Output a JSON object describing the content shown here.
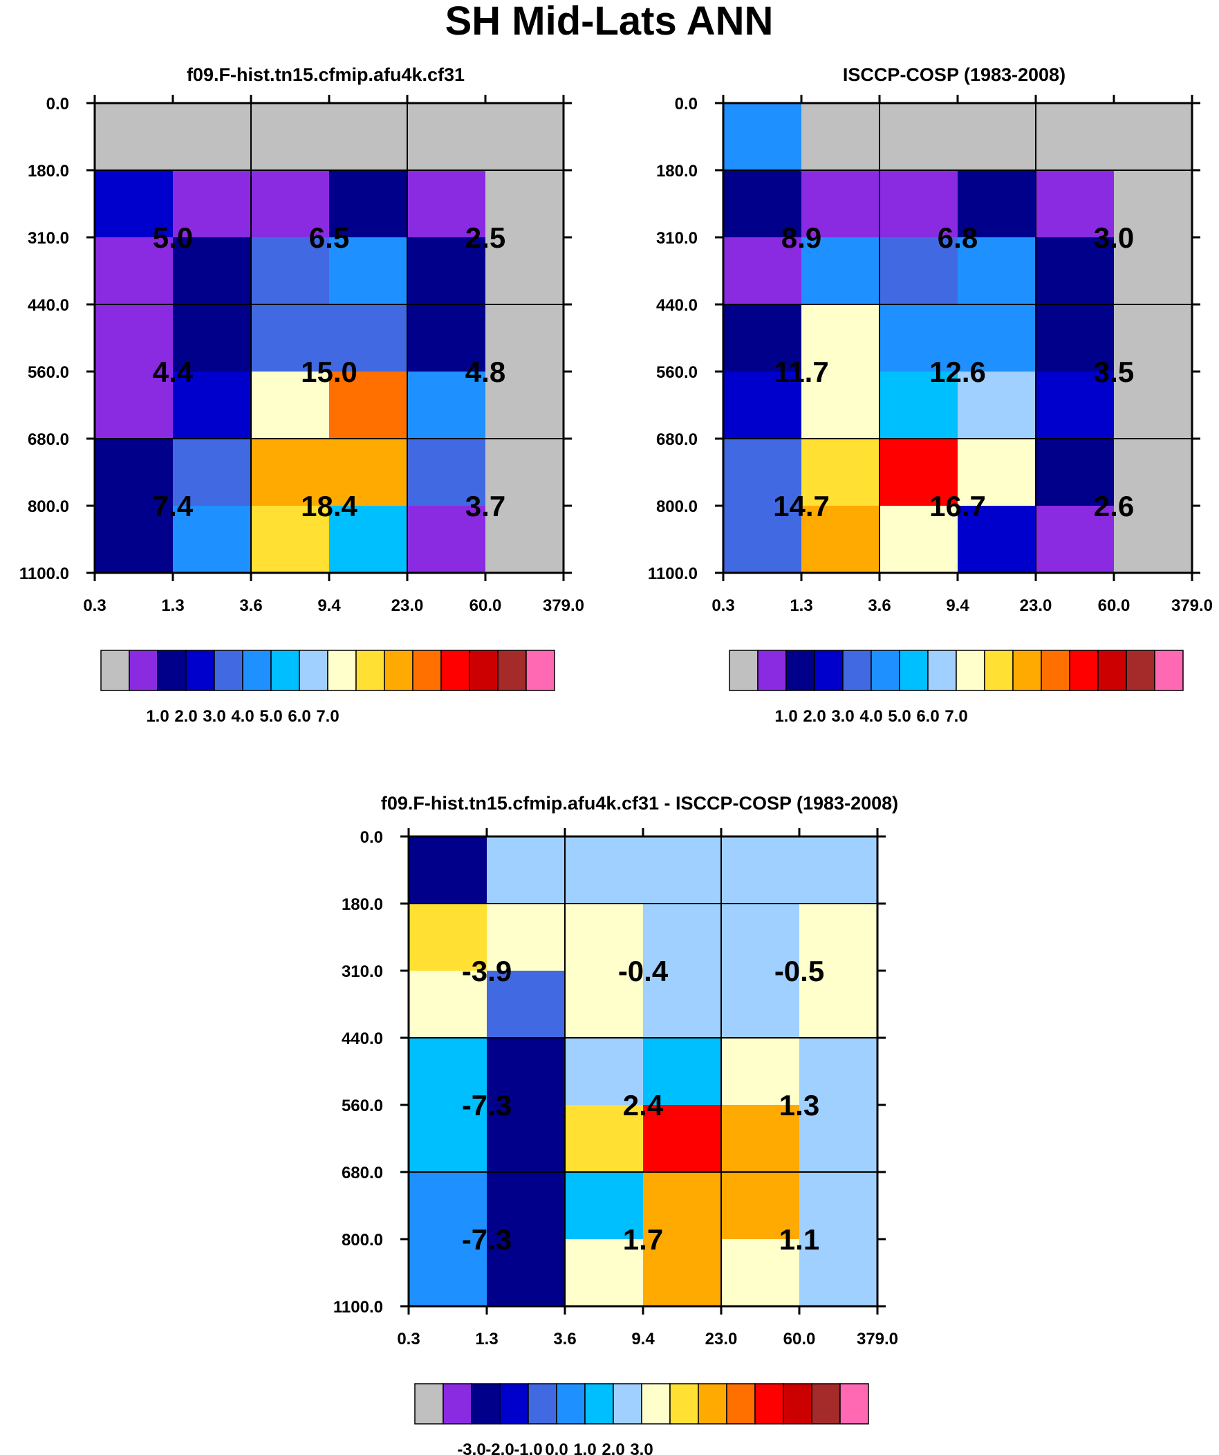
{
  "title": "SH Mid-Lats ANN",
  "colors": {
    "palette": [
      "#c0c0c0",
      "#8a2be2",
      "#00008b",
      "#0000cd",
      "#4169e1",
      "#1e90ff",
      "#00bfff",
      "#a0d0ff",
      "#ffffcc",
      "#ffe033",
      "#ffaa00",
      "#ff7000",
      "#ff0000",
      "#cc0000",
      "#a52a2a",
      "#ff69b4"
    ],
    "axis": "#000000",
    "cell_border": "#000000"
  },
  "chart_data": [
    {
      "type": "heatmap",
      "title": "f09.F-hist.tn15.cfmip.afu4k.cf31",
      "x_ticks": [
        "0.3",
        "1.3",
        "3.6",
        "9.4",
        "23.0",
        "60.0",
        "379.0"
      ],
      "y_ticks": [
        "0.0",
        "180.0",
        "310.0",
        "440.0",
        "560.0",
        "680.0",
        "800.0",
        "1100.0"
      ],
      "cells": [
        [
          0,
          0,
          0,
          0,
          0,
          0
        ],
        [
          3,
          1,
          1,
          2,
          1,
          0
        ],
        [
          1,
          2,
          4,
          5,
          2,
          0
        ],
        [
          1,
          2,
          4,
          4,
          2,
          0
        ],
        [
          1,
          3,
          8,
          11,
          5,
          0
        ],
        [
          2,
          4,
          10,
          10,
          4,
          0
        ],
        [
          2,
          5,
          9,
          6,
          1,
          0
        ]
      ],
      "group_labels": [
        [
          "5.0",
          "6.5",
          "2.5"
        ],
        [
          "4.4",
          "15.0",
          "4.8"
        ],
        [
          "7.4",
          "18.4",
          "3.7"
        ]
      ],
      "colorbar": {
        "labels": [
          "1.0",
          "2.0",
          "3.0",
          "4.0",
          "5.0",
          "6.0",
          "7.0"
        ]
      }
    },
    {
      "type": "heatmap",
      "title": "ISCCP-COSP (1983-2008)",
      "x_ticks": [
        "0.3",
        "1.3",
        "3.6",
        "9.4",
        "23.0",
        "60.0",
        "379.0"
      ],
      "y_ticks": [
        "0.0",
        "180.0",
        "310.0",
        "440.0",
        "560.0",
        "680.0",
        "800.0",
        "1100.0"
      ],
      "cells": [
        [
          5,
          0,
          0,
          0,
          0,
          0
        ],
        [
          2,
          1,
          1,
          2,
          1,
          0
        ],
        [
          1,
          5,
          4,
          5,
          2,
          0
        ],
        [
          2,
          8,
          5,
          5,
          2,
          0
        ],
        [
          3,
          8,
          6,
          7,
          3,
          0
        ],
        [
          4,
          9,
          12,
          8,
          2,
          0
        ],
        [
          4,
          10,
          8,
          3,
          1,
          0
        ]
      ],
      "group_labels": [
        [
          "8.9",
          "6.8",
          "3.0"
        ],
        [
          "11.7",
          "12.6",
          "3.5"
        ],
        [
          "14.7",
          "16.7",
          "2.6"
        ]
      ],
      "colorbar": {
        "labels": [
          "1.0",
          "2.0",
          "3.0",
          "4.0",
          "5.0",
          "6.0",
          "7.0"
        ]
      }
    },
    {
      "type": "heatmap",
      "title": "f09.F-hist.tn15.cfmip.afu4k.cf31 - ISCCP-COSP (1983-2008)",
      "x_ticks": [
        "0.3",
        "1.3",
        "3.6",
        "9.4",
        "23.0",
        "60.0",
        "379.0"
      ],
      "y_ticks": [
        "0.0",
        "180.0",
        "310.0",
        "440.0",
        "560.0",
        "680.0",
        "800.0",
        "1100.0"
      ],
      "cells": [
        [
          2,
          7,
          7,
          7,
          7,
          7
        ],
        [
          9,
          8,
          8,
          7,
          7,
          8
        ],
        [
          8,
          4,
          8,
          7,
          7,
          8
        ],
        [
          6,
          2,
          7,
          6,
          8,
          7
        ],
        [
          6,
          2,
          9,
          12,
          10,
          7
        ],
        [
          5,
          2,
          6,
          10,
          10,
          7
        ],
        [
          5,
          2,
          8,
          10,
          8,
          7
        ]
      ],
      "group_labels": [
        [
          "-3.9",
          "-0.4",
          "-0.5"
        ],
        [
          "-7.3",
          "2.4",
          "1.3"
        ],
        [
          "-7.3",
          "1.7",
          "1.1"
        ]
      ],
      "colorbar": {
        "labels": [
          "-3.0",
          "-2.0",
          "-1.0",
          "0.0",
          "1.0",
          "2.0",
          "3.0"
        ]
      }
    }
  ]
}
